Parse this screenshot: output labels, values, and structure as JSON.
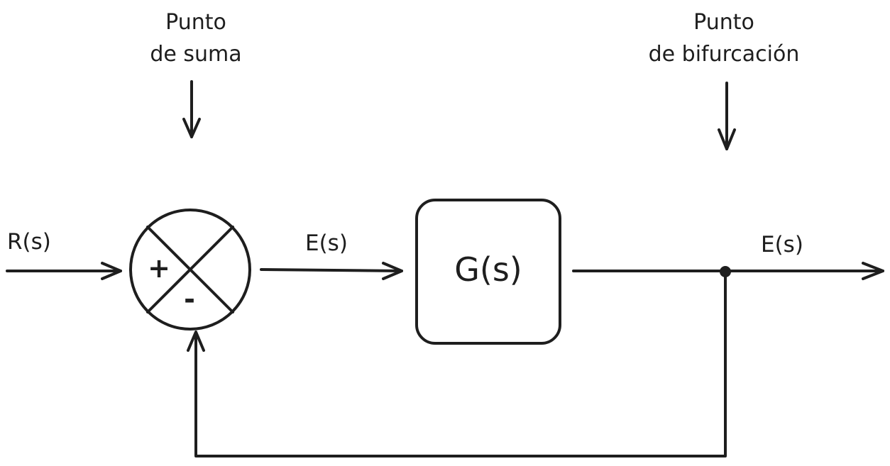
{
  "annotations": {
    "sum_point": {
      "line1": "Punto",
      "line2": "de suma"
    },
    "branch_point": {
      "line1": "Punto",
      "line2": "de bifurcación"
    }
  },
  "signals": {
    "input": "R(s)",
    "error": "E(s)",
    "output": "E(s)"
  },
  "block": {
    "label": "G(s)"
  },
  "summing_junction": {
    "plus": "+",
    "minus": "-"
  }
}
